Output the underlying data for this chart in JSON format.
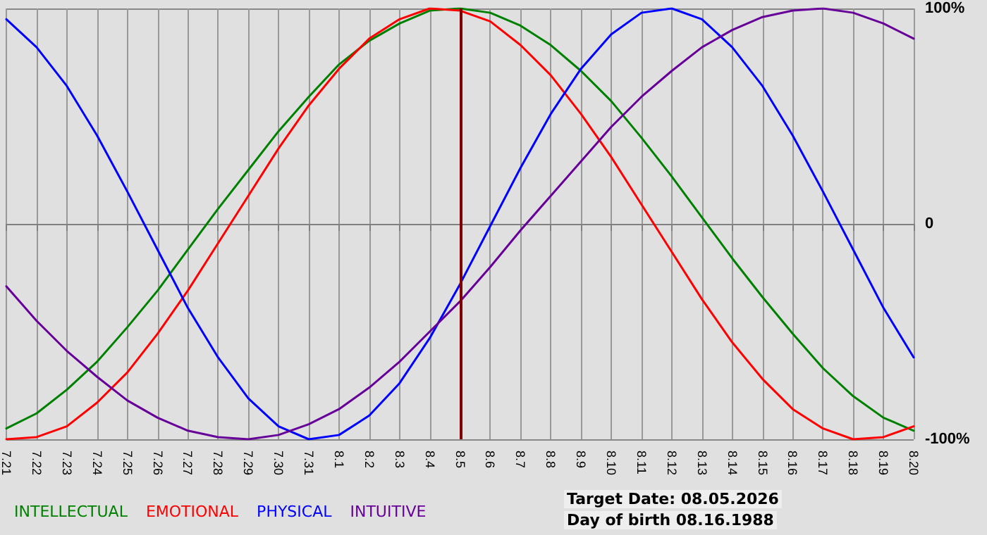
{
  "chart_data": {
    "type": "line",
    "categories": [
      "7.21",
      "7.22",
      "7.23",
      "7.24",
      "7.25",
      "7.26",
      "7.27",
      "7.28",
      "7.29",
      "7.30",
      "7.31",
      "8.1",
      "8.2",
      "8.3",
      "8.4",
      "8.5",
      "8.6",
      "8.7",
      "8.8",
      "8.9",
      "8.10",
      "8.11",
      "8.12",
      "8.13",
      "8.14",
      "8.15",
      "8.16",
      "8.17",
      "8.18",
      "8.19",
      "8.20"
    ],
    "series": [
      {
        "name": "INTELLECTUAL",
        "color": "#008000",
        "values": [
          -0.95,
          -0.88,
          -0.77,
          -0.64,
          -0.48,
          -0.31,
          -0.12,
          0.07,
          0.25,
          0.43,
          0.59,
          0.74,
          0.85,
          0.93,
          0.99,
          1.0,
          0.98,
          0.92,
          0.83,
          0.71,
          0.57,
          0.4,
          0.22,
          0.03,
          -0.16,
          -0.34,
          -0.51,
          -0.67,
          -0.8,
          -0.9,
          -0.96
        ]
      },
      {
        "name": "EMOTIONAL",
        "color": "#ff0000",
        "values": [
          -1.0,
          -0.99,
          -0.94,
          -0.83,
          -0.69,
          -0.51,
          -0.31,
          -0.09,
          0.13,
          0.35,
          0.55,
          0.72,
          0.86,
          0.95,
          1.0,
          0.99,
          0.94,
          0.83,
          0.69,
          0.51,
          0.31,
          0.09,
          -0.13,
          -0.35,
          -0.55,
          -0.72,
          -0.86,
          -0.95,
          -1.0,
          -0.99,
          -0.94
        ]
      },
      {
        "name": "PHYSICAL",
        "color": "#0000ff",
        "values": [
          0.95,
          0.82,
          0.64,
          0.41,
          0.15,
          -0.12,
          -0.39,
          -0.62,
          -0.81,
          -0.94,
          -1.0,
          -0.98,
          -0.89,
          -0.74,
          -0.53,
          -0.28,
          -0.01,
          0.26,
          0.51,
          0.72,
          0.88,
          0.98,
          1.0,
          0.95,
          0.82,
          0.64,
          0.41,
          0.15,
          -0.12,
          -0.39,
          -0.62
        ]
      },
      {
        "name": "INTUITIVE",
        "color": "#660099",
        "values": [
          -0.29,
          -0.45,
          -0.59,
          -0.71,
          -0.82,
          -0.9,
          -0.96,
          -0.99,
          -1.0,
          -0.98,
          -0.93,
          -0.86,
          -0.76,
          -0.64,
          -0.5,
          -0.36,
          -0.2,
          -0.03,
          0.13,
          0.29,
          0.45,
          0.59,
          0.71,
          0.82,
          0.9,
          0.96,
          0.99,
          1.0,
          0.98,
          0.93,
          0.86
        ]
      }
    ],
    "ylim": [
      -1,
      1
    ],
    "yticks": [
      {
        "value": 1,
        "label": "100%"
      },
      {
        "value": 0,
        "label": "0"
      },
      {
        "value": -1,
        "label": "-100%"
      }
    ],
    "ref_lines": [
      {
        "axis": "x",
        "value": "8.5",
        "color": "#800000"
      }
    ],
    "annotations": [
      "Target Date: 08.05.2026",
      "Day of birth 08.16.1988"
    ],
    "grid": true,
    "legend": "bottom left",
    "marker": "none",
    "line_style": "solid"
  }
}
